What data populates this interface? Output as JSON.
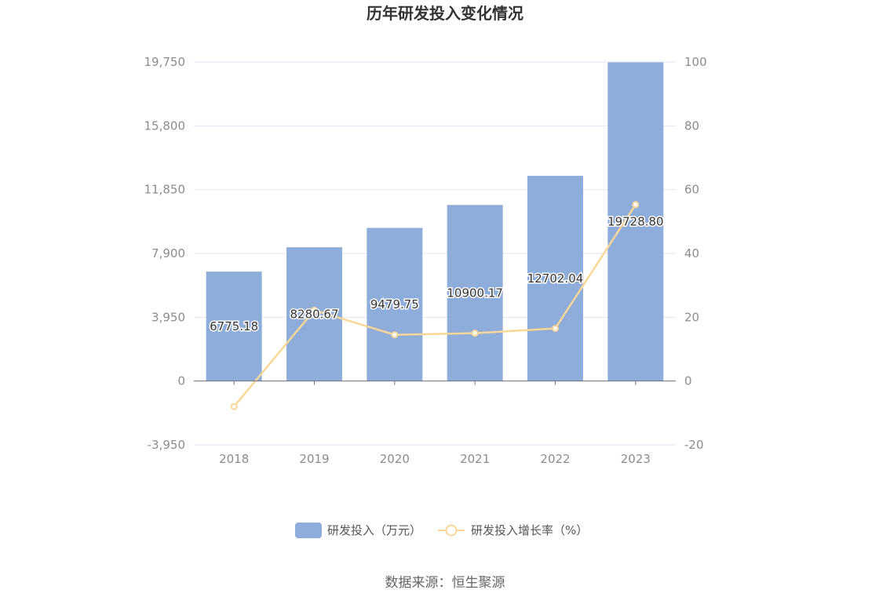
{
  "chart_data": {
    "type": "bar",
    "title": "历年研发投入变化情况",
    "categories": [
      "2018",
      "2019",
      "2020",
      "2021",
      "2022",
      "2023"
    ],
    "series": [
      {
        "name": "研发投入（万元）",
        "type": "bar",
        "axis": "left",
        "values": [
          6775.18,
          8280.67,
          9479.75,
          10900.17,
          12702.04,
          19728.8
        ],
        "labels": [
          "6775.18",
          "8280.67",
          "9479.75",
          "10900.17",
          "12702.04",
          "19728.80"
        ],
        "color": "#8eaddb"
      },
      {
        "name": "研发投入增长率（%）",
        "type": "line",
        "axis": "right",
        "values": [
          -8.0,
          22.2,
          14.5,
          15.0,
          16.5,
          55.3
        ],
        "color": "#fad797"
      }
    ],
    "y_left": {
      "ticks": [
        -3950,
        0,
        3950,
        7900,
        11850,
        15800,
        19750
      ],
      "tick_labels": [
        "-3,950",
        "0",
        "3,950",
        "7,900",
        "11,850",
        "15,800",
        "19,750"
      ],
      "ylim": [
        -3950,
        19750
      ]
    },
    "y_right": {
      "ticks": [
        -20,
        0,
        20,
        40,
        60,
        80,
        100
      ],
      "tick_labels": [
        "-20",
        "0",
        "20",
        "40",
        "60",
        "80",
        "100"
      ],
      "ylim": [
        -20,
        100
      ]
    },
    "grid": true,
    "legend_position": "bottom"
  },
  "source": "数据来源：恒生聚源"
}
